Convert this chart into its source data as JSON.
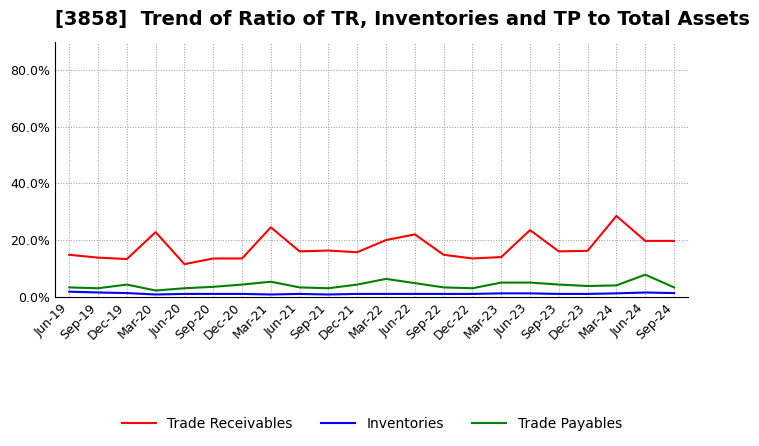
{
  "title": "[3858]  Trend of Ratio of TR, Inventories and TP to Total Assets",
  "x_labels": [
    "Jun-19",
    "Sep-19",
    "Dec-19",
    "Mar-20",
    "Jun-20",
    "Sep-20",
    "Dec-20",
    "Mar-21",
    "Jun-21",
    "Sep-21",
    "Dec-21",
    "Mar-22",
    "Jun-22",
    "Sep-22",
    "Dec-22",
    "Mar-23",
    "Jun-23",
    "Sep-23",
    "Dec-23",
    "Mar-24",
    "Jun-24",
    "Sep-24"
  ],
  "trade_receivables": [
    0.148,
    0.138,
    0.133,
    0.228,
    0.115,
    0.135,
    0.135,
    0.245,
    0.16,
    0.163,
    0.157,
    0.2,
    0.22,
    0.148,
    0.135,
    0.14,
    0.235,
    0.16,
    0.162,
    0.285,
    0.197,
    0.197
  ],
  "inventories": [
    0.018,
    0.015,
    0.013,
    0.008,
    0.01,
    0.01,
    0.01,
    0.008,
    0.01,
    0.008,
    0.01,
    0.01,
    0.01,
    0.01,
    0.01,
    0.012,
    0.012,
    0.01,
    0.01,
    0.012,
    0.015,
    0.013
  ],
  "trade_payables": [
    0.033,
    0.03,
    0.043,
    0.022,
    0.03,
    0.035,
    0.043,
    0.053,
    0.033,
    0.03,
    0.043,
    0.063,
    0.048,
    0.033,
    0.03,
    0.05,
    0.05,
    0.043,
    0.038,
    0.04,
    0.078,
    0.033
  ],
  "line_colors": {
    "trade_receivables": "#FF0000",
    "inventories": "#0000FF",
    "trade_payables": "#008000"
  },
  "legend_labels": [
    "Trade Receivables",
    "Inventories",
    "Trade Payables"
  ],
  "ylim": [
    0.0,
    0.9
  ],
  "yticks": [
    0.0,
    0.2,
    0.4,
    0.6,
    0.8
  ],
  "background_color": "#ffffff",
  "grid_color": "#999999",
  "title_fontsize": 14,
  "axis_fontsize": 9,
  "legend_fontsize": 10
}
